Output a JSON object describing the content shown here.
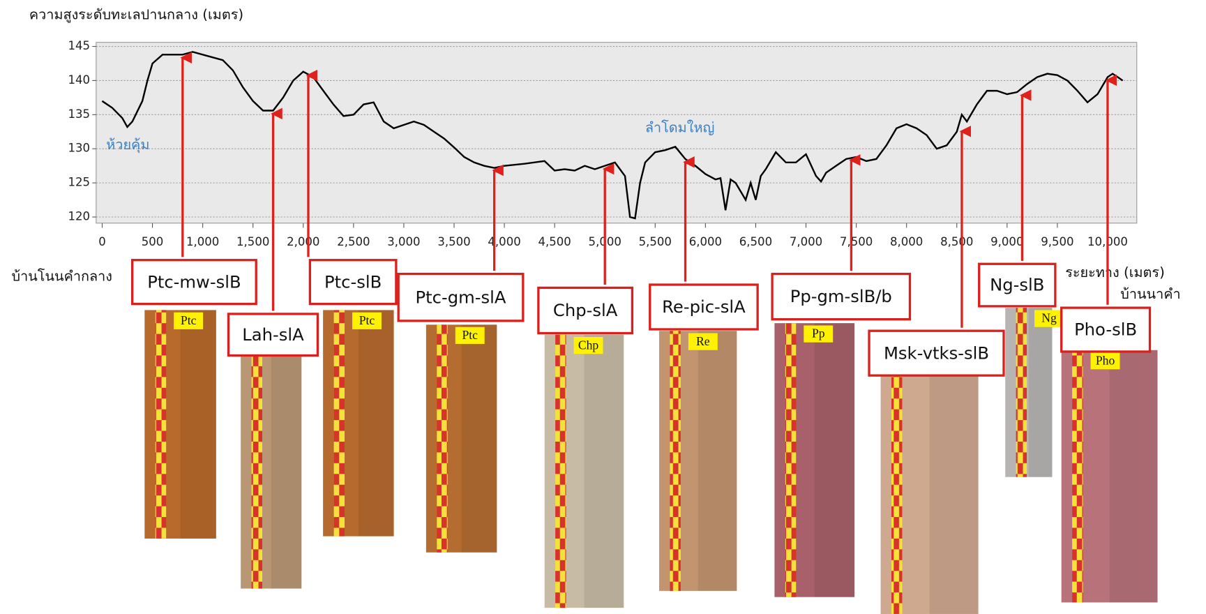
{
  "chart_data": {
    "type": "line",
    "title": "ความสูงระดับทะเลปานกลาง (เมตร)",
    "x_label": "ระยะทาง (เมตร)",
    "start_label": "บ้านโนนคำกลาง",
    "end_label": "บ้านนาคำ",
    "color": "#000000",
    "grid": true,
    "xlim": [
      -60,
      10290
    ],
    "ylim": [
      119.1,
      145.6
    ],
    "yticks": [
      120,
      125,
      130,
      135,
      140,
      145
    ],
    "xticks": [
      0,
      500,
      {
        "value": 1000,
        "label": "1,000"
      },
      {
        "value": 1500,
        "label": "1,500"
      },
      {
        "value": 2000,
        "label": "2,000"
      },
      {
        "value": 2500,
        "label": "2,500"
      },
      {
        "value": 3000,
        "label": "3,000"
      },
      {
        "value": 3500,
        "label": "3,500"
      },
      {
        "value": 4000,
        "label": "4,000"
      },
      {
        "value": 4500,
        "label": "4,500"
      },
      {
        "value": 5000,
        "label": "5,000"
      },
      {
        "value": 5500,
        "label": "5,500"
      },
      {
        "value": 6000,
        "label": "6,000"
      },
      {
        "value": 6500,
        "label": "6,500"
      },
      {
        "value": 7000,
        "label": "7,000"
      },
      {
        "value": 7500,
        "label": "7,500"
      },
      {
        "value": 8000,
        "label": "8,000"
      },
      {
        "value": 8500,
        "label": "8,500"
      },
      {
        "value": 9000,
        "label": "9,000"
      },
      {
        "value": 9500,
        "label": "9,500"
      },
      {
        "value": 10000,
        "label": "10,000"
      }
    ],
    "x": [
      0,
      100,
      200,
      250,
      300,
      400,
      450,
      500,
      600,
      800,
      900,
      1000,
      1200,
      1300,
      1400,
      1500,
      1600,
      1700,
      1800,
      1900,
      2000,
      2100,
      2200,
      2300,
      2400,
      2500,
      2600,
      2700,
      2800,
      2900,
      3000,
      3100,
      3200,
      3300,
      3400,
      3500,
      3600,
      3700,
      3800,
      3900,
      4000,
      4200,
      4400,
      4500,
      4600,
      4700,
      4800,
      4900,
      5000,
      5100,
      5200,
      5250,
      5300,
      5350,
      5400,
      5500,
      5600,
      5700,
      5800,
      5900,
      6000,
      6100,
      6150,
      6200,
      6250,
      6300,
      6400,
      6450,
      6500,
      6550,
      6600,
      6700,
      6800,
      6900,
      7000,
      7100,
      7150,
      7200,
      7300,
      7400,
      7500,
      7600,
      7700,
      7800,
      7900,
      8000,
      8100,
      8200,
      8300,
      8400,
      8500,
      8550,
      8600,
      8700,
      8800,
      8900,
      9000,
      9100,
      9200,
      9300,
      9400,
      9500,
      9600,
      9700,
      9800,
      9900,
      10000,
      10050,
      10100,
      10150
    ],
    "values": [
      137,
      136,
      134.5,
      133.2,
      134,
      137,
      140,
      142.5,
      143.8,
      143.8,
      144.2,
      143.8,
      143,
      141.5,
      139,
      137,
      135.6,
      135.6,
      137.5,
      140,
      141.3,
      140.5,
      138.5,
      136.5,
      134.8,
      135,
      136.5,
      136.8,
      134,
      133,
      133.5,
      134,
      133.5,
      132.5,
      131.5,
      130.2,
      128.8,
      128,
      127.5,
      127.2,
      127.5,
      127.8,
      128.2,
      126.8,
      127,
      126.8,
      127.5,
      127,
      127.5,
      128,
      126,
      120,
      119.8,
      125,
      128,
      129.5,
      129.8,
      130.3,
      128.5,
      127.5,
      126.3,
      125.5,
      125.7,
      121,
      125.5,
      125,
      122.5,
      125,
      122.5,
      126,
      127,
      129.5,
      128,
      128,
      129.2,
      126,
      125.2,
      126.5,
      127.5,
      128.5,
      128.8,
      128.2,
      128.5,
      130.5,
      133,
      133.6,
      133,
      132,
      130,
      130.5,
      132.5,
      135,
      134,
      136.5,
      138.5,
      138.5,
      138,
      138.3,
      139.5,
      140.5,
      141,
      140.8,
      140,
      138.5,
      136.8,
      138,
      140.5,
      141,
      140.5,
      140
    ],
    "place_labels": [
      {
        "text": "ห้วยคุ้ม",
        "x": 40,
        "y": 130.5
      },
      {
        "text": "ลำโดมใหญ่",
        "x": 5400,
        "y": 133
      }
    ],
    "annotations": [
      {
        "text": "Ptc-mw-slB",
        "x": 800,
        "y": 143.8,
        "tag": "Ptc"
      },
      {
        "text": "Lah-slA",
        "x": 1700,
        "y": 135.6
      },
      {
        "text": "Ptc-slB",
        "x": 2050,
        "y": 141.2,
        "tag": "Ptc"
      },
      {
        "text": "Ptc-gm-slA",
        "x": 3900,
        "y": 127.3,
        "tag": "Ptc"
      },
      {
        "text": "Chp-slA",
        "x": 5000,
        "y": 127.5,
        "tag": "Chp"
      },
      {
        "text": "Re-pic-slA",
        "x": 5800,
        "y": 128.5,
        "tag": "Re"
      },
      {
        "text": "Pp-gm-slB/b",
        "x": 7450,
        "y": 128.8,
        "tag": "Pp"
      },
      {
        "text": "Msk-vtks-slB",
        "x": 8550,
        "y": 133
      },
      {
        "text": "Ng-slB",
        "x": 9150,
        "y": 138.3,
        "tag": "Ng"
      },
      {
        "text": "Pho-slB",
        "x": 10000,
        "y": 140.5,
        "tag": "Pho"
      }
    ]
  }
}
